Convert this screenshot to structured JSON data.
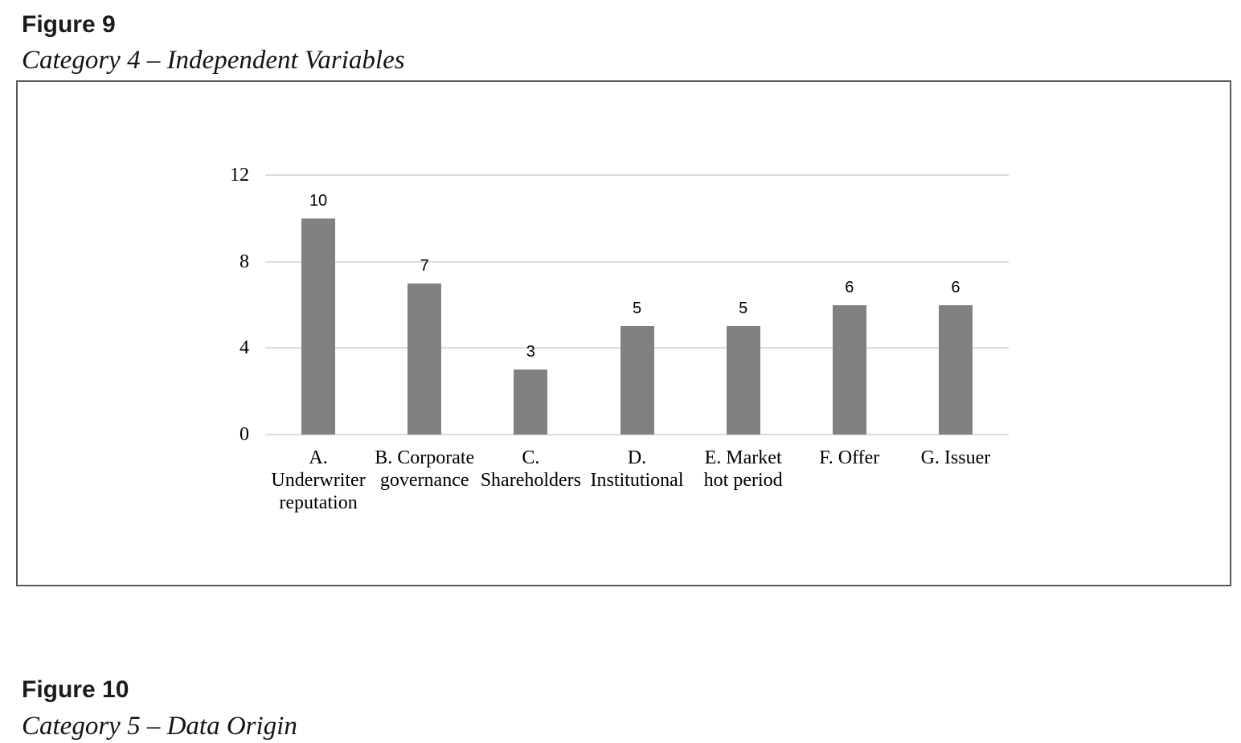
{
  "figures": {
    "fig9": {
      "label": "Figure 9",
      "caption": "Category 4 – Independent Variables"
    },
    "fig10": {
      "label": "Figure 10",
      "caption": "Category 5 – Data Origin"
    }
  },
  "chart_data": {
    "type": "bar",
    "title": "",
    "categories": [
      "A. Underwriter reputation",
      "B. Corporate governance",
      "C. Shareholders",
      "D. Institutional",
      "E. Market hot period",
      "F. Offer",
      "G. Issuer"
    ],
    "category_label_lines": [
      [
        "A.",
        "Underwriter",
        "reputation"
      ],
      [
        "B. Corporate",
        "governance"
      ],
      [
        "C.",
        "Shareholders"
      ],
      [
        "D.",
        "Institutional"
      ],
      [
        "E. Market",
        "hot period"
      ],
      [
        "F. Offer"
      ],
      [
        "G. Issuer"
      ]
    ],
    "values": [
      10,
      7,
      3,
      5,
      5,
      6,
      6
    ],
    "show_data_labels": true,
    "y_ticks": [
      0,
      4,
      8,
      12
    ],
    "ylim": [
      0,
      12
    ],
    "xlabel": "",
    "ylabel": "",
    "grid": true,
    "legend": "none",
    "bar_color": "#818181",
    "gridline_color": "#dcdcdc",
    "frame_color": "#595959",
    "text_color": "#000000"
  }
}
